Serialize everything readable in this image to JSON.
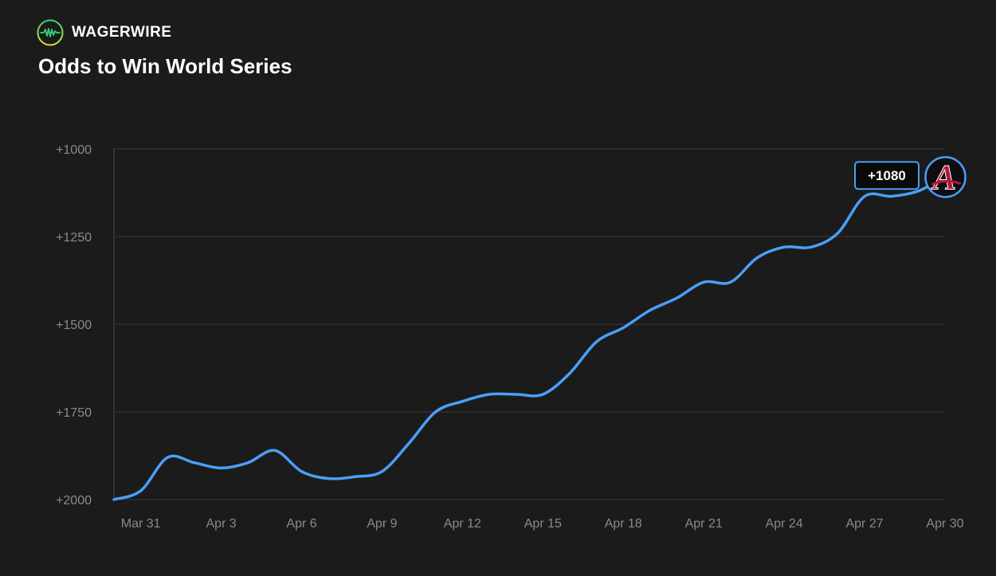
{
  "brand": {
    "name": "WAGERWIRE",
    "logo_icon": "pulse-circle-icon",
    "logo_gradient": [
      "#36d37a",
      "#d9e23a"
    ]
  },
  "colors": {
    "background": "#1b1b1c",
    "line": "#4a9ff5",
    "grid": "#3a3a3c",
    "tick": "#8a8a8c",
    "team_logo": "#b3163f"
  },
  "chart_data": {
    "type": "line",
    "title": "Odds to Win World Series",
    "xlabel": "",
    "ylabel": "",
    "y_axis_inverted": true,
    "ylim": [
      2000,
      1000
    ],
    "yticks": [
      1000,
      1250,
      1500,
      1750,
      2000
    ],
    "ytick_labels": [
      "+1000",
      "+1250",
      "+1500",
      "+1750",
      "+2000"
    ],
    "x_tick_labels": [
      "Mar 31",
      "Apr 3",
      "Apr 6",
      "Apr 9",
      "Apr 12",
      "Apr 15",
      "Apr 18",
      "Apr 21",
      "Apr 24",
      "Apr 27",
      "Apr 30"
    ],
    "x_range": [
      "Mar 30",
      "Apr 30"
    ],
    "grid": true,
    "x": [
      "Mar 30",
      "Mar 31",
      "Apr 1",
      "Apr 2",
      "Apr 3",
      "Apr 4",
      "Apr 5",
      "Apr 6",
      "Apr 7",
      "Apr 8",
      "Apr 9",
      "Apr 10",
      "Apr 11",
      "Apr 12",
      "Apr 13",
      "Apr 14",
      "Apr 15",
      "Apr 16",
      "Apr 17",
      "Apr 18",
      "Apr 19",
      "Apr 20",
      "Apr 21",
      "Apr 22",
      "Apr 23",
      "Apr 24",
      "Apr 25",
      "Apr 26",
      "Apr 27",
      "Apr 28",
      "Apr 29",
      "Apr 30"
    ],
    "series": [
      {
        "values": [
          2000,
          1975,
          1880,
          1895,
          1910,
          1895,
          1860,
          1920,
          1940,
          1935,
          1920,
          1840,
          1750,
          1720,
          1700,
          1700,
          1700,
          1640,
          1550,
          1510,
          1460,
          1425,
          1380,
          1380,
          1310,
          1280,
          1280,
          1240,
          1135,
          1135,
          1120,
          1080
        ]
      }
    ],
    "current_value_label": "+1080",
    "marker": "atlanta-braves-logo"
  }
}
